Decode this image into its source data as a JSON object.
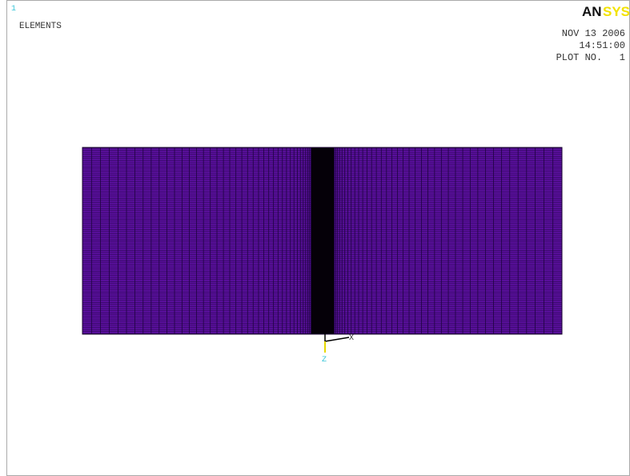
{
  "header": {
    "window_number": "1",
    "plot_label": "ELEMENTS",
    "logo": [
      "AN",
      "SYS"
    ],
    "date": "NOV 13 2006",
    "time": "14:51:00",
    "plot_number": "PLOT NO.   1"
  },
  "triad": {
    "x_label": "X",
    "z_label": "Z"
  }
}
